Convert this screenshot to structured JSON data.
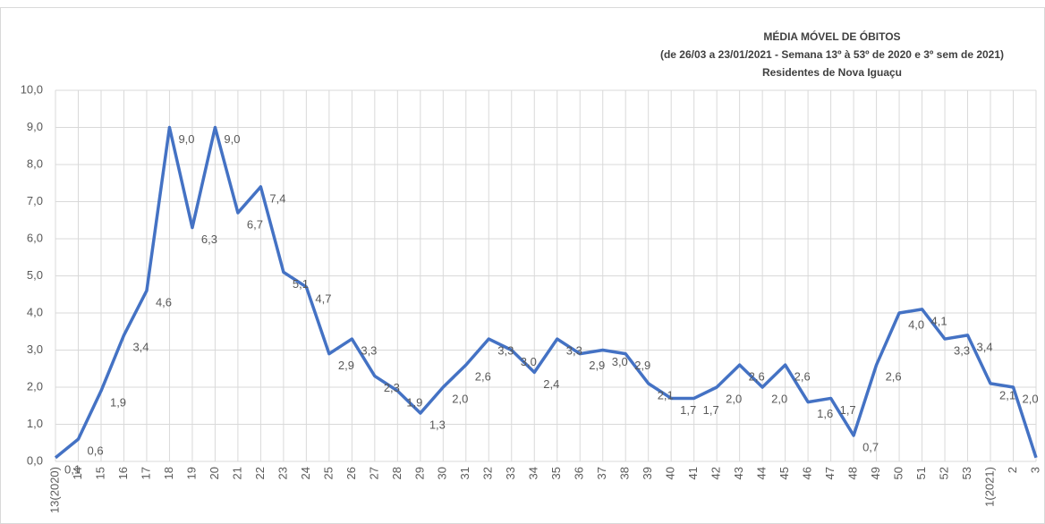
{
  "chart_data": {
    "type": "line",
    "title": "MÉDIA MÓVEL DE ÓBITOS",
    "subtitle": "(de 26/03 a 23/01/2021 - Semana 13º à 53º de 2020  e 3º sem de 2021)",
    "subtitle2": "Residentes de Nova Iguaçu",
    "categories": [
      "13(2020)",
      "14",
      "15",
      "16",
      "17",
      "18",
      "19",
      "20",
      "21",
      "22",
      "23",
      "24",
      "25",
      "26",
      "27",
      "28",
      "29",
      "30",
      "31",
      "32",
      "33",
      "34",
      "35",
      "36",
      "37",
      "38",
      "39",
      "40",
      "41",
      "42",
      "43",
      "44",
      "45",
      "46",
      "47",
      "48",
      "49",
      "50",
      "51",
      "52",
      "53",
      "1(2021)",
      "2",
      "3"
    ],
    "series": [
      {
        "name": "Média móvel",
        "color": "#4472c4",
        "values": [
          0.1,
          0.6,
          1.9,
          3.4,
          4.6,
          9.0,
          6.3,
          9.0,
          6.7,
          7.4,
          5.1,
          4.7,
          2.9,
          3.3,
          2.3,
          1.9,
          1.3,
          2.0,
          2.6,
          3.3,
          3.0,
          2.4,
          3.3,
          2.9,
          3.0,
          2.9,
          2.1,
          1.7,
          1.7,
          2.0,
          2.6,
          2.0,
          2.6,
          1.6,
          1.7,
          0.7,
          2.6,
          4.0,
          4.1,
          3.3,
          3.4,
          2.1,
          2.0,
          0.1
        ],
        "value_labels": [
          "0,1",
          "0,6",
          "1,9",
          "3,4",
          "4,6",
          "9,0",
          "6,3",
          "9,0",
          "6,7",
          "7,4",
          "5,1",
          "4,7",
          "2,9",
          "3,3",
          "2,3",
          "1,9",
          "1,3",
          "2,0",
          "2,6",
          "3,3",
          "3,0",
          "2,4",
          "3,3",
          "2,9",
          "3,0",
          "2,9",
          "2,1",
          "1,7",
          "1,7",
          "2,0",
          "2,6",
          "2,0",
          "2,6",
          "1,6",
          "1,7",
          "0,7",
          "2,6",
          "4,0",
          "4,1",
          "3,3",
          "3,4",
          "2,1",
          "2,0",
          "0,1"
        ]
      }
    ],
    "ylim": [
      0,
      10
    ],
    "yticks": [
      {
        "value": 0,
        "label": "0,0"
      },
      {
        "value": 1,
        "label": "1,0"
      },
      {
        "value": 2,
        "label": "2,0"
      },
      {
        "value": 3,
        "label": "3,0"
      },
      {
        "value": 4,
        "label": "4,0"
      },
      {
        "value": 5,
        "label": "5,0"
      },
      {
        "value": 6,
        "label": "6,0"
      },
      {
        "value": 7,
        "label": "7,0"
      },
      {
        "value": 8,
        "label": "8,0"
      },
      {
        "value": 9,
        "label": "9,0"
      },
      {
        "value": 10,
        "label": "10,0"
      }
    ],
    "grid": true
  }
}
